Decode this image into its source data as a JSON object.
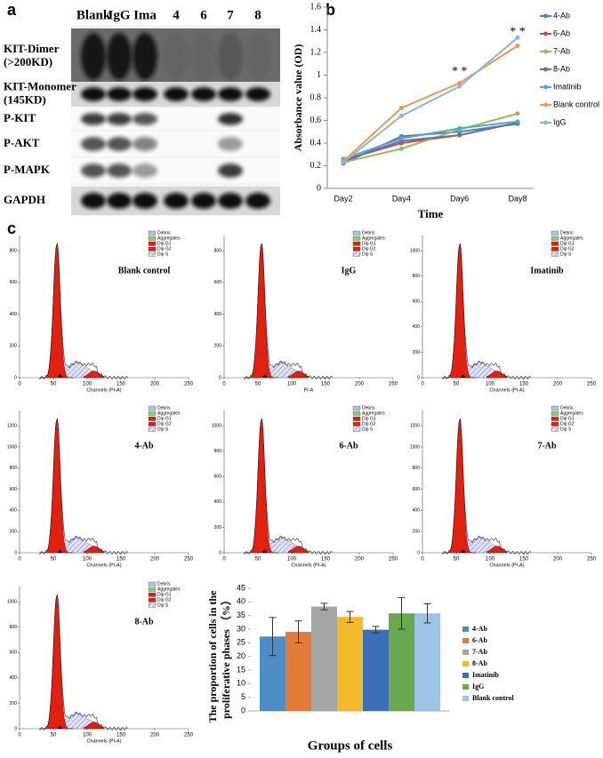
{
  "panel_a": {
    "label": "a",
    "lanes": [
      "Blank",
      "IgG",
      "Ima",
      "4",
      "6",
      "7",
      "8"
    ],
    "rows": [
      [
        "KIT-Dimer",
        "(>200KD)"
      ],
      [
        "KIT-Monomer",
        "(145KD)"
      ],
      [
        "P-KIT"
      ],
      [
        "P-AKT"
      ],
      [
        "P-MAPK"
      ],
      [
        "GAPDH"
      ]
    ]
  },
  "panel_b_label": "b",
  "panel_c_label": "c",
  "flow": {
    "legend": [
      "Debris",
      "Aggregates",
      "Dip G1",
      "Dip G2",
      "Dip S"
    ],
    "histograms": [
      {
        "title": "Blank control",
        "xlabel": "Channels (PI-A)",
        "xticks": [
          0,
          50,
          100,
          150,
          200,
          250
        ],
        "yticks": [
          0,
          200,
          400,
          600,
          800
        ]
      },
      {
        "title": "IgG",
        "xlabel": "PI-A",
        "xticks": [
          0,
          50,
          100,
          150,
          200,
          250
        ],
        "yticks": [
          0,
          200,
          400,
          600,
          800
        ]
      },
      {
        "title": "Imatinib",
        "xlabel": "Channels (PI-A)",
        "xticks": [
          0,
          50,
          100,
          150,
          200,
          250
        ],
        "yticks": [
          0,
          200,
          400,
          600,
          800,
          1000
        ]
      },
      {
        "title": "4-Ab",
        "xlabel": "Channels (PI-A)",
        "xticks": [
          0,
          50,
          100,
          150,
          200,
          250
        ],
        "yticks": [
          0,
          200,
          400,
          600,
          800,
          1000,
          1200
        ]
      },
      {
        "title": "6-Ab",
        "xlabel": "Channels (PI-A)",
        "xticks": [
          0,
          50,
          100,
          150,
          200,
          250
        ],
        "yticks": [
          0,
          200,
          400,
          600,
          800,
          1000
        ]
      },
      {
        "title": "7-Ab",
        "xlabel": "Channels (PI-A)",
        "xticks": [
          0,
          50,
          100,
          150,
          200,
          250
        ],
        "yticks": [
          0,
          200,
          400,
          600,
          800,
          1000,
          1200
        ]
      },
      {
        "title": "8-Ab",
        "xlabel": "Channels (PI-A)",
        "xticks": [
          0,
          50,
          100,
          150,
          200,
          250
        ],
        "yticks": [
          0,
          200,
          400,
          600,
          800,
          1000
        ]
      }
    ]
  },
  "chart_data": [
    {
      "type": "line",
      "xlabel": "Time",
      "ylabel": "Absorbance value (OD)",
      "categories": [
        "Day2",
        "Day4",
        "Day6",
        "Day8"
      ],
      "ylim": [
        0,
        1.6
      ],
      "yticks": [
        0,
        0.2,
        0.4,
        0.6,
        0.8,
        1,
        1.2,
        1.4,
        1.6
      ],
      "series": [
        {
          "name": "4-Ab",
          "color": "#4f81bd",
          "values": [
            0.22,
            0.46,
            0.5,
            0.57
          ]
        },
        {
          "name": "6-Ab",
          "color": "#c0504d",
          "values": [
            0.25,
            0.4,
            0.47,
            0.58
          ]
        },
        {
          "name": "7-Ab",
          "color": "#9bbb59",
          "values": [
            0.23,
            0.35,
            0.52,
            0.66
          ]
        },
        {
          "name": "8-Ab",
          "color": "#8064a2",
          "values": [
            0.24,
            0.42,
            0.47,
            0.58
          ]
        },
        {
          "name": "Imatinib",
          "color": "#4bacc6",
          "values": [
            0.26,
            0.44,
            0.53,
            0.59
          ]
        },
        {
          "name": "Blank control",
          "color": "#f79646",
          "values": [
            0.24,
            0.71,
            0.93,
            1.26
          ]
        },
        {
          "name": "IgG",
          "color": "#95b3d7",
          "values": [
            0.23,
            0.64,
            0.9,
            1.33
          ]
        }
      ],
      "annotations": [
        {
          "text": "* *",
          "x": "Day6",
          "y": 1.03
        },
        {
          "text": "* *",
          "x": "Day8",
          "y": 1.38
        }
      ]
    },
    {
      "type": "bar",
      "xlabel": "Groups of cells",
      "ylabel": [
        "The proportion of cells in the",
        "proliferative phases （%）"
      ],
      "ylim": [
        0,
        45
      ],
      "yticks": [
        0,
        5,
        10,
        15,
        20,
        25,
        30,
        35,
        40,
        45
      ],
      "series": [
        {
          "name": "4-Ab",
          "color": "#4e8dc4",
          "values": [
            27.3
          ],
          "errors": [
            7
          ]
        },
        {
          "name": "6-Ab",
          "color": "#e07b39",
          "values": [
            29
          ],
          "errors": [
            4
          ]
        },
        {
          "name": "7-Ab",
          "color": "#a5a5a5",
          "values": [
            38.3
          ],
          "errors": [
            1.2
          ]
        },
        {
          "name": "8-Ab",
          "color": "#f3b92b",
          "values": [
            34.5
          ],
          "errors": [
            2
          ]
        },
        {
          "name": "Imatinib",
          "color": "#3a6fb5",
          "values": [
            29.8
          ],
          "errors": [
            1.2
          ]
        },
        {
          "name": "IgG",
          "color": "#6aa84f",
          "values": [
            35.8
          ],
          "errors": [
            5.8
          ]
        },
        {
          "name": "Blank control",
          "color": "#9dc3e6",
          "values": [
            35.8
          ],
          "errors": [
            3.5
          ]
        }
      ]
    }
  ]
}
